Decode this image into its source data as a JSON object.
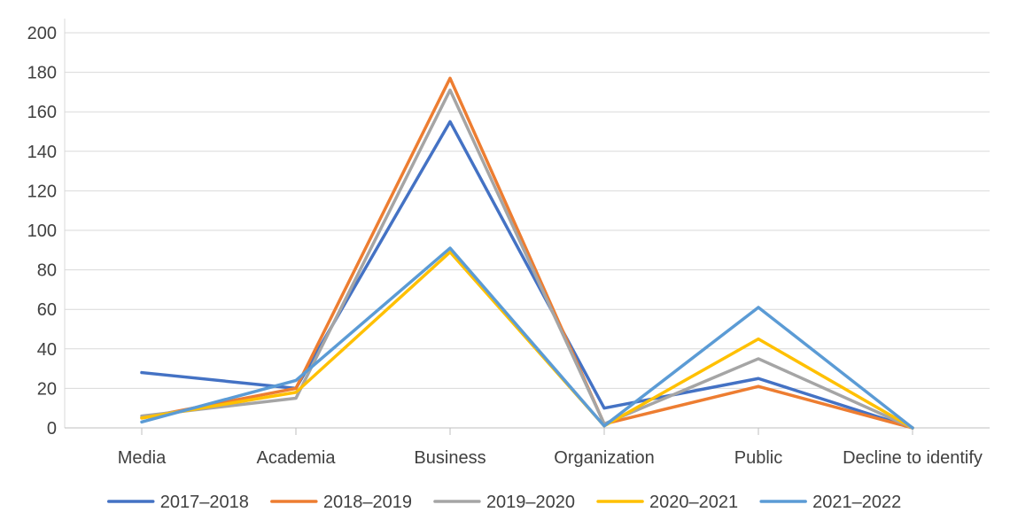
{
  "chart_data": {
    "type": "line",
    "title": "",
    "xlabel": "",
    "ylabel": "",
    "ylim": [
      0,
      200
    ],
    "yticks": [
      0,
      20,
      40,
      60,
      80,
      100,
      120,
      140,
      160,
      180,
      200
    ],
    "grid": true,
    "legend_position": "bottom",
    "categories": [
      "Media",
      "Academia",
      "Business",
      "Organization",
      "Public",
      "Decline to identify"
    ],
    "series": [
      {
        "name": "2017–2018",
        "color": "#4472C4",
        "values": [
          28,
          20,
          155,
          10,
          25,
          0
        ]
      },
      {
        "name": "2018–2019",
        "color": "#ED7D31",
        "values": [
          5,
          20,
          177,
          2,
          21,
          0
        ]
      },
      {
        "name": "2019–2020",
        "color": "#A5A5A5",
        "values": [
          6,
          15,
          171,
          2,
          35,
          0
        ]
      },
      {
        "name": "2020–2021",
        "color": "#FFC000",
        "values": [
          5,
          18,
          89,
          1,
          45,
          0
        ]
      },
      {
        "name": "2021–2022",
        "color": "#5B9BD5",
        "values": [
          3,
          24,
          91,
          1,
          61,
          0
        ]
      }
    ]
  }
}
